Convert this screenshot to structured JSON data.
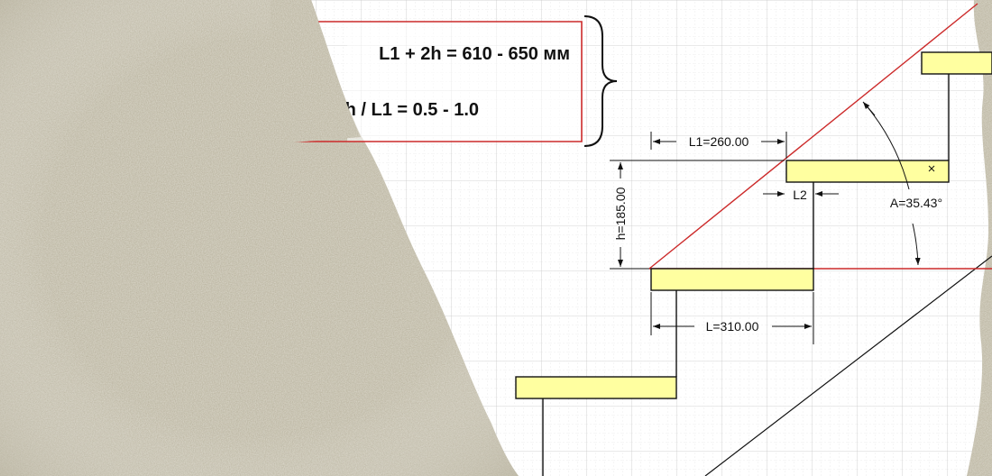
{
  "formulas": {
    "line1": "L1 + 2h = 610 - 650 мм",
    "line2": "h / L1 = 0.5 - 1.0"
  },
  "dimensions": {
    "l1_label": "L1=260.00",
    "l2_label": "L2",
    "h_label": "h=185.00",
    "l_label": "L=310.00",
    "angle_label": "A=35.43°"
  },
  "colors": {
    "tread_fill": "#ffffa0",
    "accent_red": "#cc2a2a",
    "grid": "#d6d6d6",
    "ink": "#111111"
  }
}
